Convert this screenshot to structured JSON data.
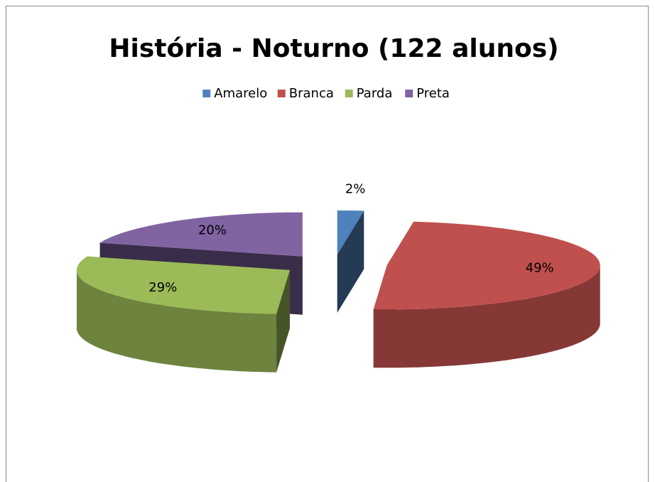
{
  "chart_data": {
    "type": "pie3d",
    "title": "História - Noturno (122 alunos)",
    "categories": [
      "Amarelo",
      "Branca",
      "Parda",
      "Preta"
    ],
    "values": [
      2,
      49,
      29,
      20
    ],
    "value_labels": [
      "2%",
      "49%",
      "29%",
      "20%"
    ],
    "colors": [
      "#4f81bd",
      "#c0504d",
      "#9bbb59",
      "#8064a2"
    ],
    "legend": "top"
  }
}
